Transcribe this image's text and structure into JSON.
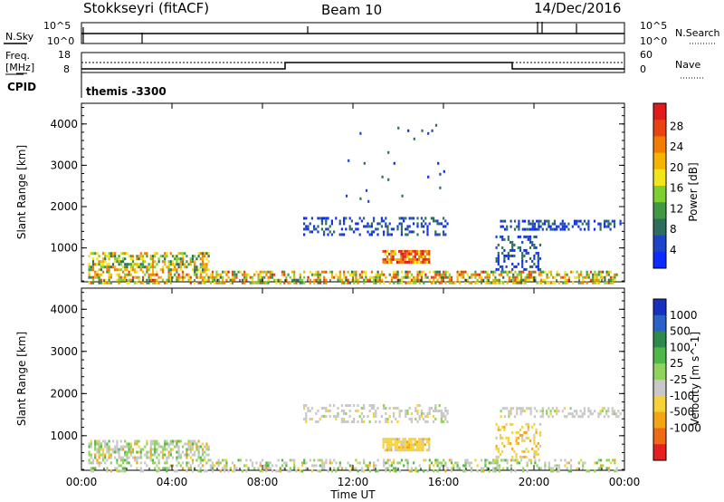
{
  "header": {
    "title": "Stokkseyri (fitACF)",
    "beam": "Beam 10",
    "date": "14/Dec/2016"
  },
  "noise_panel": {
    "left_label": "N.Sky",
    "right_label": "N.Search",
    "y_top_label": "10^5",
    "y_bottom_label": "10^0"
  },
  "freq_panel": {
    "left_label_line1": "Freq.",
    "left_label_line2": "[MHz]",
    "left_ticks": [
      "18",
      "8"
    ],
    "right_label": "Nave",
    "right_ticks": [
      "60",
      "0"
    ]
  },
  "cpid": {
    "label": "CPID",
    "value": "themis -3300"
  },
  "chart_data": [
    {
      "type": "heatmap",
      "panel": "power",
      "ylabel": "Slant Range [km]",
      "yticks": [
        "1000",
        "2000",
        "3000",
        "4000"
      ],
      "ylim": [
        180,
        4500
      ],
      "colorbar": {
        "label": "Power [dB]",
        "ticks": [
          "4",
          "8",
          "12",
          "16",
          "20",
          "24",
          "28"
        ],
        "range": [
          0,
          32
        ],
        "colors": [
          "#0b2bff",
          "#1e44c8",
          "#2d6f5a",
          "#3f9944",
          "#7fcf33",
          "#f2e61a",
          "#f5b400",
          "#f07d00",
          "#e84310",
          "#e11b1b"
        ]
      },
      "scatter_regions": [
        {
          "t0": 0.3,
          "t1": 23.7,
          "r0": 180,
          "r1": 450,
          "density": 0.55
        },
        {
          "t0": 0.3,
          "t1": 5.6,
          "r0": 450,
          "r1": 900,
          "density": 0.6
        },
        {
          "t0": 9.8,
          "t1": 16.2,
          "r0": 1350,
          "r1": 1750,
          "density": 0.35
        },
        {
          "t0": 13.3,
          "t1": 15.4,
          "r0": 650,
          "r1": 950,
          "density": 0.85
        },
        {
          "t0": 18.5,
          "t1": 23.8,
          "r0": 1450,
          "r1": 1680,
          "density": 0.4
        },
        {
          "t0": 18.3,
          "t1": 20.3,
          "r0": 500,
          "r1": 1300,
          "density": 0.3
        },
        {
          "t0": 11.5,
          "t1": 16.0,
          "r0": 2000,
          "r1": 4000,
          "density": 0.01
        }
      ]
    },
    {
      "type": "heatmap",
      "panel": "velocity",
      "xlabel": "Time UT",
      "xticks": [
        "00:00",
        "04:00",
        "08:00",
        "12:00",
        "16:00",
        "20:00",
        "00:00"
      ],
      "xlim": [
        0,
        24
      ],
      "ylabel": "Slant Range [km]",
      "yticks": [
        "1000",
        "2000",
        "3000",
        "4000"
      ],
      "ylim": [
        180,
        4500
      ],
      "colorbar": {
        "label": "Velocity [m s^-1]",
        "ticks": [
          "1000",
          "500",
          "100",
          "25",
          "-25",
          "-100",
          "-500",
          "-1000"
        ],
        "colors": [
          "#1830c0",
          "#2a62c7",
          "#2e8a4c",
          "#4fb848",
          "#8fd35a",
          "#c8c8c8",
          "#f5d23a",
          "#f5a514",
          "#ee6a14",
          "#e52020"
        ]
      },
      "scatter_regions": [
        {
          "t0": 0.3,
          "t1": 23.7,
          "r0": 180,
          "r1": 450,
          "density": 0.35
        },
        {
          "t0": 0.3,
          "t1": 5.6,
          "r0": 450,
          "r1": 900,
          "density": 0.55
        },
        {
          "t0": 9.8,
          "t1": 16.2,
          "r0": 1350,
          "r1": 1750,
          "density": 0.3
        },
        {
          "t0": 13.3,
          "t1": 15.4,
          "r0": 650,
          "r1": 950,
          "density": 0.85
        },
        {
          "t0": 18.5,
          "t1": 23.8,
          "r0": 1450,
          "r1": 1680,
          "density": 0.35
        },
        {
          "t0": 18.3,
          "t1": 20.3,
          "r0": 500,
          "r1": 1300,
          "density": 0.3
        }
      ]
    }
  ]
}
